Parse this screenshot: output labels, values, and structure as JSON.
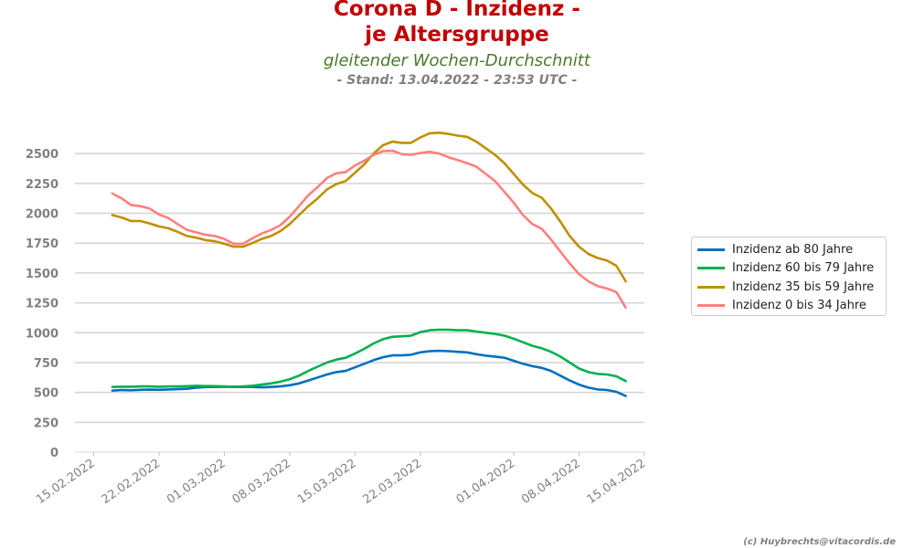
{
  "header": {
    "title_line1": "Corona D - Inzidenz -",
    "title_line2": "je Altersgruppe",
    "subtitle": "gleitender Wochen-Durchschnitt",
    "stand": "- Stand: 13.04.2022 - 23:53 UTC -"
  },
  "footer": {
    "copyright": "(c) Huybrechts@vitacordis.de"
  },
  "chart_data": {
    "type": "line",
    "title": "Corona D - Inzidenz - je Altersgruppe",
    "subtitle": "gleitender Wochen-Durchschnitt",
    "xlabel": "",
    "ylabel": "",
    "x_range": [
      "2022-02-13",
      "2022-04-15"
    ],
    "ylim": [
      0,
      2700
    ],
    "yticks": [
      0,
      250,
      500,
      750,
      1000,
      1250,
      1500,
      1750,
      2000,
      2250,
      2500
    ],
    "xticks": [
      "15.02.2022",
      "22.02.2022",
      "01.03.2022",
      "08.03.2022",
      "15.03.2022",
      "22.03.2022",
      "01.04.2022",
      "08.04.2022",
      "15.04.2022"
    ],
    "xtick_dates": [
      "2022-02-15",
      "2022-02-22",
      "2022-03-01",
      "2022-03-08",
      "2022-03-15",
      "2022-03-22",
      "2022-04-01",
      "2022-04-08",
      "2022-04-15"
    ],
    "grid": "horizontal",
    "legend_position": "right",
    "x": [
      "2022-02-17",
      "2022-02-18",
      "2022-02-19",
      "2022-02-20",
      "2022-02-21",
      "2022-02-22",
      "2022-02-23",
      "2022-02-24",
      "2022-02-25",
      "2022-02-26",
      "2022-02-27",
      "2022-02-28",
      "2022-03-01",
      "2022-03-02",
      "2022-03-03",
      "2022-03-04",
      "2022-03-05",
      "2022-03-06",
      "2022-03-07",
      "2022-03-08",
      "2022-03-09",
      "2022-03-10",
      "2022-03-11",
      "2022-03-12",
      "2022-03-13",
      "2022-03-14",
      "2022-03-15",
      "2022-03-16",
      "2022-03-17",
      "2022-03-18",
      "2022-03-19",
      "2022-03-20",
      "2022-03-21",
      "2022-03-22",
      "2022-03-23",
      "2022-03-24",
      "2022-03-25",
      "2022-03-26",
      "2022-03-27",
      "2022-03-28",
      "2022-03-29",
      "2022-03-30",
      "2022-03-31",
      "2022-04-01",
      "2022-04-02",
      "2022-04-03",
      "2022-04-04",
      "2022-04-05",
      "2022-04-06",
      "2022-04-07",
      "2022-04-08",
      "2022-04-09",
      "2022-04-10",
      "2022-04-11",
      "2022-04-12",
      "2022-04-13"
    ],
    "series": [
      {
        "name": "Inzidenz ab 80 Jahre",
        "color": "#0070c0",
        "values": [
          515,
          520,
          518,
          522,
          523,
          522,
          525,
          527,
          530,
          540,
          545,
          545,
          548,
          545,
          545,
          545,
          542,
          545,
          550,
          560,
          575,
          600,
          625,
          650,
          670,
          680,
          710,
          740,
          770,
          795,
          810,
          810,
          815,
          835,
          845,
          848,
          845,
          840,
          835,
          820,
          808,
          800,
          790,
          765,
          740,
          720,
          705,
          680,
          640,
          600,
          565,
          540,
          525,
          520,
          505,
          470
        ]
      },
      {
        "name": "Inzidenz 60 bis 79 Jahre",
        "color": "#00b050",
        "values": [
          545,
          548,
          548,
          550,
          550,
          548,
          550,
          550,
          552,
          555,
          553,
          552,
          550,
          548,
          550,
          555,
          565,
          575,
          590,
          610,
          640,
          680,
          715,
          750,
          775,
          790,
          825,
          865,
          910,
          945,
          965,
          970,
          975,
          1005,
          1020,
          1025,
          1025,
          1020,
          1020,
          1010,
          1000,
          990,
          975,
          950,
          920,
          890,
          870,
          840,
          800,
          750,
          700,
          670,
          655,
          650,
          635,
          595
        ]
      },
      {
        "name": "Inzidenz 35 bis 59 Jahre",
        "color": "#bf9000",
        "values": [
          1985,
          1965,
          1935,
          1935,
          1915,
          1890,
          1875,
          1845,
          1810,
          1795,
          1775,
          1765,
          1745,
          1720,
          1720,
          1750,
          1785,
          1810,
          1850,
          1910,
          1985,
          2060,
          2125,
          2200,
          2245,
          2270,
          2340,
          2410,
          2500,
          2570,
          2600,
          2590,
          2590,
          2635,
          2670,
          2675,
          2665,
          2650,
          2640,
          2600,
          2545,
          2490,
          2420,
          2330,
          2240,
          2170,
          2130,
          2040,
          1930,
          1810,
          1720,
          1660,
          1625,
          1605,
          1560,
          1430
        ]
      },
      {
        "name": "Inzidenz 0 bis 34 Jahre",
        "color": "#ff7f7f",
        "values": [
          2165,
          2125,
          2070,
          2060,
          2040,
          1990,
          1960,
          1910,
          1860,
          1840,
          1820,
          1810,
          1785,
          1745,
          1745,
          1790,
          1830,
          1860,
          1900,
          1970,
          2060,
          2150,
          2220,
          2295,
          2335,
          2345,
          2400,
          2440,
          2490,
          2520,
          2525,
          2495,
          2490,
          2505,
          2515,
          2500,
          2470,
          2445,
          2420,
          2390,
          2330,
          2270,
          2180,
          2090,
          1985,
          1910,
          1870,
          1780,
          1680,
          1580,
          1490,
          1430,
          1390,
          1370,
          1340,
          1210
        ]
      }
    ]
  }
}
